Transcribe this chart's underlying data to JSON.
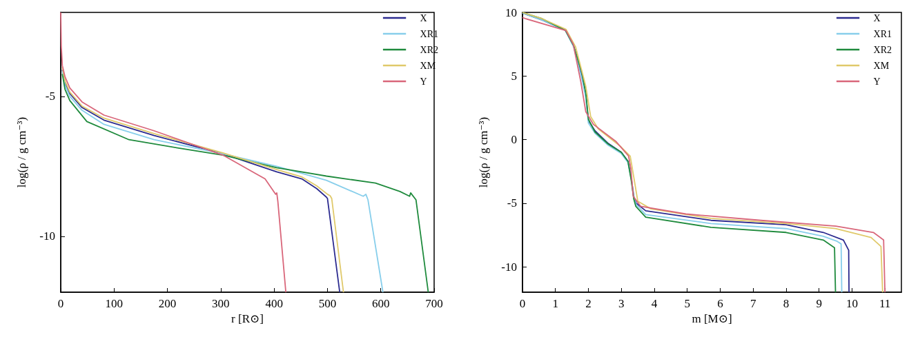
{
  "chart_data": [
    {
      "type": "line",
      "xlabel": "r [R⊙]",
      "ylabel": "log(ρ / g cm⁻³)",
      "xlim": [
        0,
        700
      ],
      "xticks": [
        0,
        100,
        200,
        300,
        400,
        500,
        600,
        700
      ],
      "ylim": [
        -12,
        -2
      ],
      "yticks": [
        -10,
        -5
      ],
      "grid": false,
      "legend": "top right",
      "series": [
        {
          "name": "X",
          "color": "#2b2a8f",
          "x": [
            3,
            8,
            17,
            40,
            81,
            175,
            304,
            405,
            452,
            480,
            498,
            500,
            523
          ],
          "values": [
            -4.05,
            -4.5,
            -4.9,
            -5.4,
            -5.85,
            -6.4,
            -7.05,
            -7.7,
            -7.95,
            -8.3,
            -8.6,
            -8.65,
            -12
          ]
        },
        {
          "name": "XR1",
          "color": "#87ceeb",
          "x": [
            3,
            8,
            17,
            40,
            81,
            175,
            304,
            405,
            498,
            567,
            572,
            576,
            604
          ],
          "values": [
            -4.1,
            -4.6,
            -5.0,
            -5.5,
            -6.0,
            -6.55,
            -7.05,
            -7.5,
            -8.0,
            -8.57,
            -8.5,
            -8.7,
            -12
          ]
        },
        {
          "name": "XR2",
          "color": "#1e8a3c",
          "x": [
            3,
            8,
            17,
            49,
            128,
            221,
            304,
            405,
            498,
            590,
            636,
            654,
            656,
            666,
            689
          ],
          "values": [
            -4.2,
            -4.75,
            -5.15,
            -5.9,
            -6.55,
            -6.85,
            -7.1,
            -7.55,
            -7.85,
            -8.1,
            -8.4,
            -8.57,
            -8.45,
            -8.7,
            -12
          ]
        },
        {
          "name": "XM",
          "color": "#e0c96a",
          "x": [
            3,
            8,
            17,
            40,
            81,
            175,
            304,
            405,
            452,
            480,
            500,
            505,
            508,
            530
          ],
          "values": [
            -3.95,
            -4.45,
            -4.85,
            -5.35,
            -5.78,
            -6.33,
            -7.02,
            -7.62,
            -7.88,
            -8.2,
            -8.5,
            -8.55,
            -8.65,
            -12
          ]
        },
        {
          "name": "Y",
          "color": "#d9667a",
          "x": [
            0,
            1,
            3,
            8,
            17,
            40,
            81,
            175,
            304,
            360,
            383,
            403,
            405,
            407,
            422
          ],
          "values": [
            -2,
            -3.2,
            -3.9,
            -4.3,
            -4.7,
            -5.2,
            -5.67,
            -6.23,
            -7.1,
            -7.7,
            -7.95,
            -8.5,
            -8.45,
            -8.75,
            -12
          ]
        }
      ]
    },
    {
      "type": "line",
      "xlabel": "m [M⊙]",
      "ylabel": "log(ρ / g cm⁻³)",
      "xlim": [
        0,
        11.5
      ],
      "xticks": [
        0,
        1,
        2,
        3,
        4,
        5,
        6,
        7,
        8,
        9,
        10,
        11
      ],
      "ylim": [
        -12,
        10
      ],
      "yticks": [
        -10,
        -5,
        0,
        5,
        10
      ],
      "grid": false,
      "legend": "top right",
      "series": [
        {
          "name": "X",
          "color": "#2b2a8f",
          "x": [
            0,
            0.6,
            1.3,
            1.55,
            1.8,
            1.92,
            2.0,
            2.2,
            2.6,
            3.0,
            3.2,
            3.3,
            3.38,
            3.45,
            3.74,
            5.72,
            8.0,
            9.13,
            9.74,
            9.9,
            9.91
          ],
          "values": [
            9.95,
            9.4,
            8.6,
            7.4,
            5.0,
            3.5,
            1.5,
            0.7,
            -0.3,
            -1.0,
            -1.7,
            -3.0,
            -4.5,
            -5.0,
            -5.6,
            -6.35,
            -6.7,
            -7.3,
            -7.9,
            -8.7,
            -12
          ]
        },
        {
          "name": "XR1",
          "color": "#87ceeb",
          "x": [
            0,
            0.6,
            1.3,
            1.55,
            1.8,
            1.92,
            2.0,
            2.2,
            2.6,
            3.0,
            3.2,
            3.3,
            3.38,
            3.45,
            3.74,
            5.72,
            8.0,
            9.13,
            9.55,
            9.67,
            9.69
          ],
          "values": [
            9.95,
            9.4,
            8.6,
            7.3,
            4.8,
            3.3,
            1.3,
            0.5,
            -0.45,
            -1.1,
            -1.8,
            -3.1,
            -4.6,
            -5.1,
            -5.9,
            -6.6,
            -7.0,
            -7.6,
            -8.0,
            -8.2,
            -12
          ]
        },
        {
          "name": "XR2",
          "color": "#1e8a3c",
          "x": [
            0,
            0.6,
            1.3,
            1.55,
            1.8,
            1.92,
            2.0,
            2.2,
            2.6,
            3.0,
            3.2,
            3.3,
            3.38,
            3.44,
            3.74,
            5.72,
            8.0,
            9.13,
            9.47,
            9.5
          ],
          "values": [
            10.0,
            9.5,
            8.6,
            7.4,
            5.3,
            3.7,
            1.6,
            0.6,
            -0.35,
            -1.0,
            -1.7,
            -3.2,
            -4.7,
            -5.25,
            -6.1,
            -6.9,
            -7.3,
            -7.9,
            -8.5,
            -12
          ]
        },
        {
          "name": "XM",
          "color": "#e0c96a",
          "x": [
            0,
            0.6,
            1.32,
            1.61,
            1.92,
            2.07,
            2.3,
            2.99,
            3.27,
            3.4,
            3.5,
            3.9,
            5.72,
            8.0,
            9.5,
            10.58,
            10.88,
            10.93
          ],
          "values": [
            10.0,
            9.5,
            8.67,
            7.3,
            4.2,
            1.8,
            0.84,
            -0.57,
            -1.3,
            -3.3,
            -4.85,
            -5.45,
            -6.2,
            -6.6,
            -7.0,
            -7.7,
            -8.4,
            -12
          ]
        },
        {
          "name": "Y",
          "color": "#d9667a",
          "x": [
            0,
            0.1,
            1.32,
            1.54,
            1.77,
            1.92,
            2.15,
            2.83,
            3.22,
            3.29,
            3.36,
            3.59,
            4.96,
            7.24,
            9.51,
            10.65,
            10.96,
            11.0
          ],
          "values": [
            9.6,
            9.5,
            8.57,
            7.5,
            4.55,
            2.2,
            1.2,
            -0.13,
            -1.3,
            -2.3,
            -4.45,
            -5.25,
            -5.85,
            -6.35,
            -6.8,
            -7.3,
            -7.9,
            -12
          ]
        }
      ]
    }
  ]
}
